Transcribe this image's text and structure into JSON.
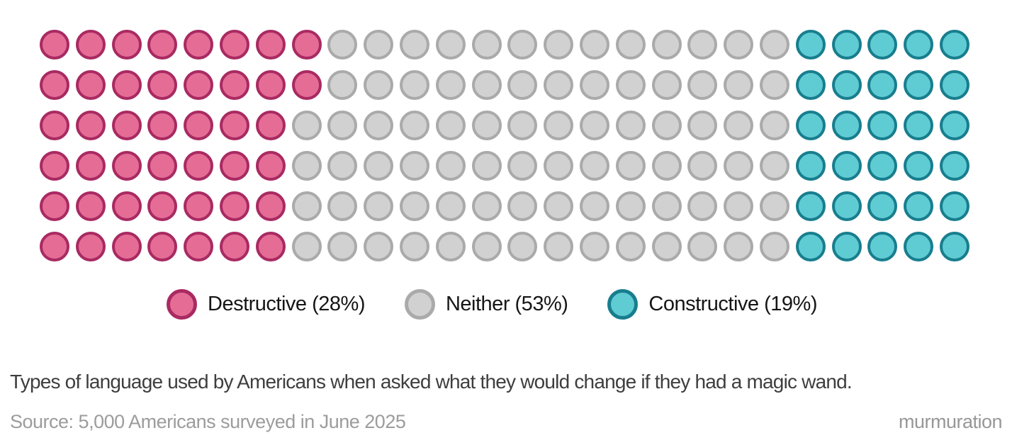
{
  "chart_data": {
    "type": "waffle",
    "title": "Types of language used by Americans when asked what they would change if they had a magic wand.",
    "rows": 6,
    "columns": 26,
    "total_dots": 156,
    "categories": [
      {
        "name": "Destructive",
        "percent": 28,
        "dots": 44,
        "fill": "#e56d95",
        "stroke": "#a92a62"
      },
      {
        "name": "Neither",
        "percent": 53,
        "dots": 82,
        "fill": "#d1d1d1",
        "stroke": "#aaaaaa"
      },
      {
        "name": "Constructive",
        "percent": 19,
        "dots": 30,
        "fill": "#5fcbd3",
        "stroke": "#187e8e"
      }
    ],
    "row_counts": [
      [
        8,
        13,
        5
      ],
      [
        8,
        13,
        5
      ],
      [
        7,
        14,
        5
      ],
      [
        7,
        14,
        5
      ],
      [
        7,
        14,
        5
      ],
      [
        7,
        14,
        5
      ]
    ],
    "legend_position": "bottom-center",
    "grid": false
  },
  "legend": {
    "items": [
      {
        "label": "Destructive (28%)"
      },
      {
        "label": "Neither (53%)"
      },
      {
        "label": "Constructive (19%)"
      }
    ]
  },
  "caption": "Types of language used by Americans when asked what they would change if they had a magic wand.",
  "source": "Source: 5,000 Americans surveyed in June 2025",
  "brand": "murmuration"
}
